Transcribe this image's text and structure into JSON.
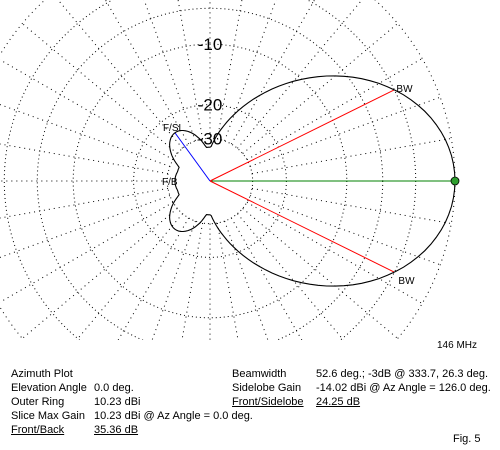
{
  "chart_data": {
    "type": "polar",
    "title": "Azimuth Plot",
    "frequency": "146 MHz",
    "ring_labels": [
      "-10",
      "-20",
      "-30"
    ],
    "ring_db": [
      -10,
      -20,
      -30
    ],
    "outer_ring_dbi": 10.23,
    "pattern": {
      "max_gain_dbi": 10.23,
      "max_gain_az_deg": 0.0,
      "beamwidth_deg": 52.6,
      "half_power_az_deg": [
        333.7,
        26.3
      ],
      "front_back_db": 35.36,
      "front_sidelobe_db": 24.25,
      "sidelobe_gain_dbi": -14.02,
      "sidelobe_az_deg": 126.0
    },
    "markers": {
      "bw_upper": "BW",
      "bw_lower": "BW",
      "fsl": "F/SL",
      "fb": "F/B"
    },
    "colors": {
      "beamwidth_lines": "#ff0000",
      "max_gain_line": "#008000",
      "sidelobe_line": "#0000ff",
      "max_marker": "#2e9e2e"
    }
  },
  "info": {
    "left": [
      {
        "key": "Azimuth Plot",
        "value": ""
      },
      {
        "key": "Elevation Angle",
        "value": "0.0 deg."
      },
      {
        "key": "Outer Ring",
        "value": "10.23 dBi"
      },
      {
        "key": "Slice Max Gain",
        "value": "10.23 dBi @ Az Angle = 0.0 deg."
      },
      {
        "key": "Front/Back",
        "value": "35.36 dB"
      }
    ],
    "right": [
      {
        "key": "Beamwidth",
        "value": "52.6 deg.; -3dB @ 333.7, 26.3 deg."
      },
      {
        "key": "Sidelobe Gain",
        "value": "-14.02 dBi @ Az Angle = 126.0 deg."
      },
      {
        "key": "Front/Sidelobe",
        "value": "24.25 dB"
      }
    ]
  },
  "figure_label": "Fig. 5"
}
